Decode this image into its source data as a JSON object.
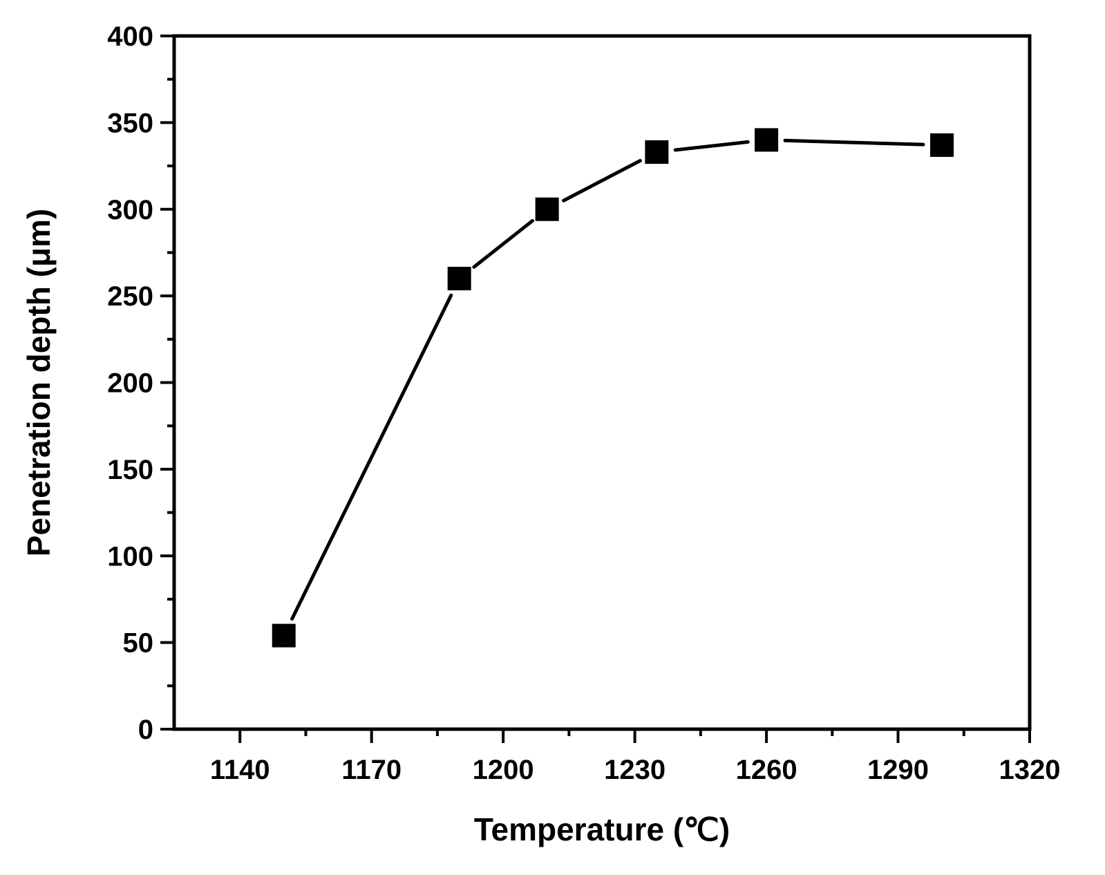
{
  "chart_data": {
    "type": "line",
    "title": "",
    "xlabel": "Temperature (℃)",
    "ylabel": "Penetration depth (μm)",
    "xlim": [
      1125,
      1320
    ],
    "ylim": [
      0,
      400
    ],
    "x_ticks": [
      1140,
      1170,
      1200,
      1230,
      1260,
      1290,
      1320
    ],
    "y_ticks": [
      0,
      50,
      100,
      150,
      200,
      250,
      300,
      350,
      400
    ],
    "x_tick_labels": [
      "1140",
      "1170",
      "1200",
      "1230",
      "1260",
      "1290",
      "1320"
    ],
    "y_tick_labels": [
      "0",
      "50",
      "100",
      "150",
      "200",
      "250",
      "300",
      "350",
      "400"
    ],
    "grid": false,
    "legend": "none",
    "marker": "square",
    "colors": {
      "series": "#000000",
      "axes": "#000000",
      "background": "#ffffff"
    },
    "series": [
      {
        "x": [
          1150,
          1190,
          1210,
          1235,
          1260,
          1300
        ],
        "y": [
          54,
          260,
          300,
          333,
          340,
          337
        ]
      }
    ]
  }
}
